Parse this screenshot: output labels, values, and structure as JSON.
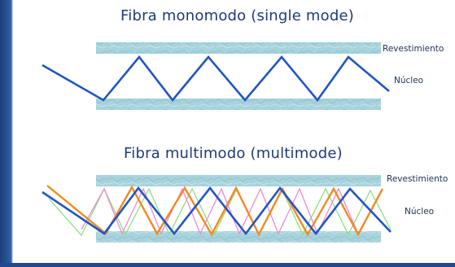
{
  "single_mode": {
    "title": "Fibra monomodo (single mode)",
    "cladding_label": "Revestimiento",
    "core_label": "Núcleo"
  },
  "multi_mode": {
    "title": "Fibra multimodo (multimode)",
    "cladding_label": "Revestimiento",
    "core_label": "Núcleo"
  },
  "colors": {
    "slide_border": "#2a5597",
    "title_text": "#1e3a7a",
    "cladding": "#a8d3dc",
    "ray_primary": "#2255c4",
    "ray_orange": "#f08a24",
    "ray_pink": "#ee88d8",
    "ray_green": "#8ee07a"
  }
}
